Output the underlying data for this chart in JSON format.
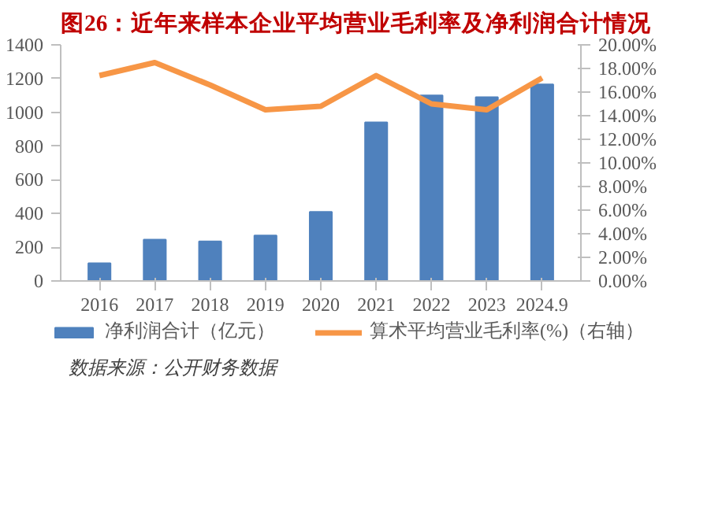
{
  "chart_data": {
    "type": "bar",
    "title": "图26：近年来样本企业平均营业毛利率及净利润合计情况",
    "categories": [
      "2016",
      "2017",
      "2018",
      "2019",
      "2020",
      "2021",
      "2022",
      "2023",
      "2024.9"
    ],
    "series": [
      {
        "name": "净利润合计（亿元）",
        "color": "#4f81bd",
        "values": [
          105,
          245,
          235,
          270,
          410,
          940,
          1100,
          1090,
          1165
        ]
      },
      {
        "name": "算术平均营业毛利率(%)（右轴）",
        "type": "line",
        "axis": "y2",
        "color": "#f79646",
        "values": [
          17.4,
          18.5,
          16.6,
          14.5,
          14.8,
          17.4,
          15.0,
          14.5,
          17.2
        ]
      }
    ],
    "ylim": [
      0,
      1400
    ],
    "yticks": [
      0,
      200,
      400,
      600,
      800,
      1000,
      1200,
      1400
    ],
    "y2lim": [
      0,
      20
    ],
    "y2ticks": [
      {
        "value": 0,
        "label": "0.00%"
      },
      {
        "value": 2,
        "label": "2.00%"
      },
      {
        "value": 4,
        "label": "4.00%"
      },
      {
        "value": 6,
        "label": "6.00%"
      },
      {
        "value": 8,
        "label": "8.00%"
      },
      {
        "value": 10,
        "label": "10.00%"
      },
      {
        "value": 12,
        "label": "12.00%"
      },
      {
        "value": 14,
        "label": "14.00%"
      },
      {
        "value": 16,
        "label": "16.00%"
      },
      {
        "value": 18,
        "label": "18.00%"
      },
      {
        "value": 20,
        "label": "20.00%"
      }
    ],
    "grid": false,
    "legend": "bottom",
    "marker": "none",
    "line_style": "solid",
    "annotations": [
      "数据来源：公开财务数据"
    ]
  }
}
